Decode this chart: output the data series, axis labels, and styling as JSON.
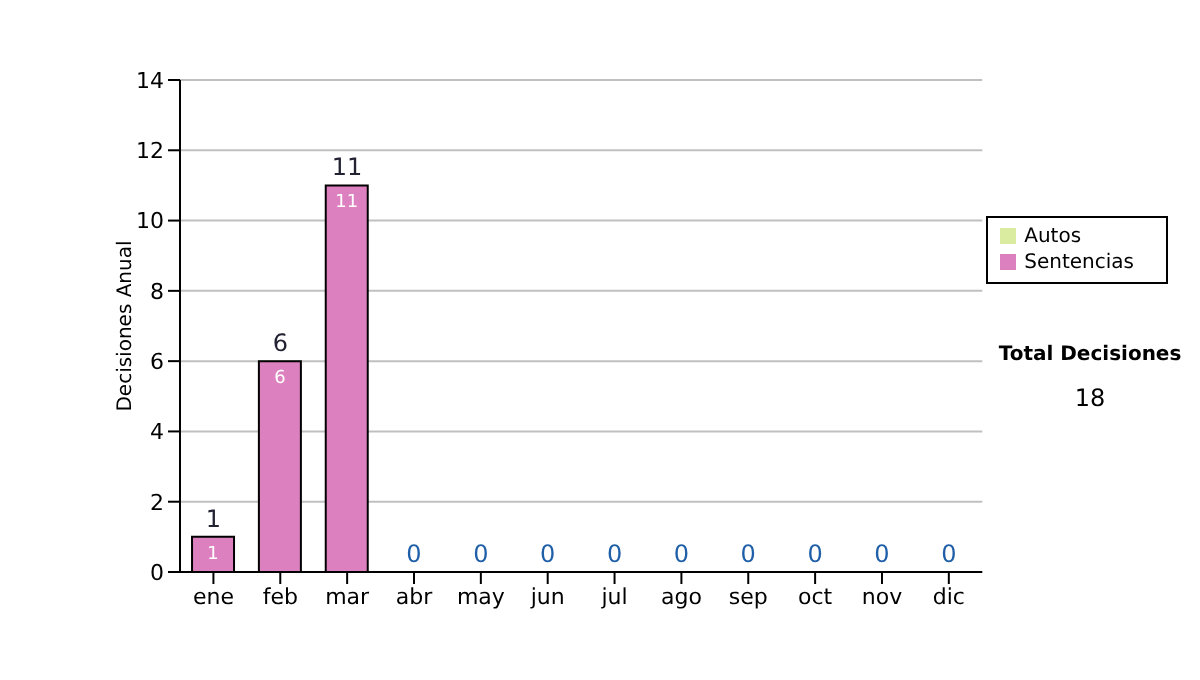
{
  "chart_data": {
    "type": "bar",
    "ylabel": "Decisiones Anual",
    "categories": [
      "ene",
      "feb",
      "mar",
      "abr",
      "may",
      "jun",
      "jul",
      "ago",
      "sep",
      "oct",
      "nov",
      "dic"
    ],
    "series": [
      {
        "name": "Sentencias",
        "color": "#dd80c0",
        "values": [
          1,
          6,
          11,
          0,
          0,
          0,
          0,
          0,
          0,
          0,
          0,
          0
        ],
        "value_labels": [
          "1",
          "6",
          "11",
          null,
          null,
          null,
          null,
          null,
          null,
          null,
          null,
          null
        ]
      },
      {
        "name": "Autos",
        "color": "#d9eca0",
        "values": [
          0,
          0,
          0,
          0,
          0,
          0,
          0,
          0,
          0,
          0,
          0,
          0
        ]
      }
    ],
    "stacked": true,
    "totals": [
      "1",
      "6",
      "11",
      "0",
      "0",
      "0",
      "0",
      "0",
      "0",
      "0",
      "0",
      "0"
    ],
    "ylim": [
      0,
      14
    ],
    "yticks": [
      0,
      2,
      4,
      6,
      8,
      10,
      12,
      14
    ],
    "grid": "y",
    "legend": "right",
    "annotations": [
      "Total Decisiones",
      "18"
    ]
  }
}
